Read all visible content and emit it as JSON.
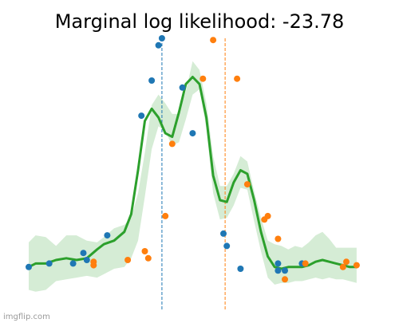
{
  "chart_data": {
    "type": "scatter",
    "title": "Marginal log likelihood: -23.78",
    "xlim": [
      0,
      100
    ],
    "ylim": [
      -0.25,
      1.3
    ],
    "grid": false,
    "axes_visible": false,
    "colors": {
      "series_a": "#1f77b4",
      "series_b": "#ff7f0e",
      "mean": "#2ca02c",
      "band": "#2ca02c"
    },
    "series": [
      {
        "color": "#1f77b4",
        "points": [
          [
            0,
            0.0
          ],
          [
            6,
            0.02
          ],
          [
            13,
            0.02
          ],
          [
            16,
            0.08
          ],
          [
            17,
            0.04
          ],
          [
            23,
            0.18
          ],
          [
            33,
            0.86
          ],
          [
            36,
            1.06
          ],
          [
            38,
            1.26
          ],
          [
            39,
            1.3
          ],
          [
            45,
            1.02
          ],
          [
            48,
            0.76
          ],
          [
            57,
            0.19
          ],
          [
            58,
            0.12
          ],
          [
            62,
            -0.01
          ],
          [
            73,
            -0.02
          ],
          [
            73,
            0.02
          ],
          [
            75,
            -0.02
          ],
          [
            80,
            0.02
          ]
        ]
      },
      {
        "color": "#ff7f0e",
        "points": [
          [
            19,
            0.03
          ],
          [
            19,
            0.01
          ],
          [
            29,
            0.04
          ],
          [
            34,
            0.09
          ],
          [
            35,
            0.05
          ],
          [
            42,
            0.7
          ],
          [
            40,
            0.29
          ],
          [
            51,
            1.07
          ],
          [
            54,
            1.29
          ],
          [
            61,
            1.07
          ],
          [
            64,
            0.47
          ],
          [
            69,
            0.27
          ],
          [
            70,
            0.29
          ],
          [
            73,
            0.16
          ],
          [
            75,
            -0.07
          ],
          [
            81,
            0.02
          ],
          [
            92,
            0.0
          ],
          [
            93,
            0.03
          ],
          [
            96,
            0.01
          ]
        ]
      }
    ],
    "mean_curve": {
      "x": [
        0,
        2,
        5,
        8,
        11,
        14,
        17,
        20,
        22,
        25,
        28,
        30,
        32,
        34,
        36,
        38,
        40,
        42,
        44,
        46,
        48,
        50,
        52,
        54,
        56,
        58,
        60,
        62,
        64,
        66,
        68,
        70,
        72,
        74,
        76,
        78,
        80,
        82,
        84,
        86,
        88,
        90,
        92,
        94,
        96
      ],
      "y": [
        0,
        0.02,
        0.02,
        0.04,
        0.05,
        0.04,
        0.05,
        0.1,
        0.13,
        0.15,
        0.2,
        0.3,
        0.55,
        0.83,
        0.9,
        0.85,
        0.76,
        0.74,
        0.88,
        1.04,
        1.08,
        1.04,
        0.85,
        0.52,
        0.38,
        0.37,
        0.48,
        0.55,
        0.53,
        0.38,
        0.2,
        0.06,
        0.0,
        -0.01,
        0.0,
        0.0,
        0.0,
        0.01,
        0.03,
        0.04,
        0.03,
        0.02,
        0.01,
        0.0,
        0.0
      ]
    },
    "band": {
      "upper": [
        0.14,
        0.18,
        0.17,
        0.12,
        0.18,
        0.18,
        0.15,
        0.14,
        0.17,
        0.22,
        0.24,
        0.28,
        0.42,
        0.65,
        0.92,
        0.98,
        0.93,
        0.87,
        0.87,
        1.0,
        1.17,
        1.12,
        0.93,
        0.63,
        0.46,
        0.46,
        0.53,
        0.63,
        0.6,
        0.43,
        0.28,
        0.15,
        0.13,
        0.12,
        0.1,
        0.12,
        0.11,
        0.14,
        0.18,
        0.2,
        0.16,
        0.11,
        0.11,
        0.11,
        0.11
      ],
      "lower": [
        -0.13,
        -0.14,
        -0.13,
        -0.08,
        -0.07,
        -0.06,
        -0.05,
        -0.06,
        -0.04,
        -0.01,
        0.0,
        0.05,
        0.15,
        0.4,
        0.67,
        0.8,
        0.77,
        0.69,
        0.71,
        0.84,
        0.98,
        1.01,
        0.79,
        0.42,
        0.27,
        0.28,
        0.35,
        0.45,
        0.44,
        0.26,
        0.09,
        -0.06,
        -0.1,
        -0.09,
        -0.09,
        -0.08,
        -0.08,
        -0.07,
        -0.06,
        -0.07,
        -0.06,
        -0.07,
        -0.07,
        -0.08,
        -0.09
      ]
    },
    "vlines": [
      {
        "x": 39,
        "color": "#1f77b4",
        "style": "dashed"
      },
      {
        "x": 57.5,
        "color": "#ff7f0e",
        "style": "dashed"
      }
    ]
  },
  "watermark": "imgflip.com"
}
